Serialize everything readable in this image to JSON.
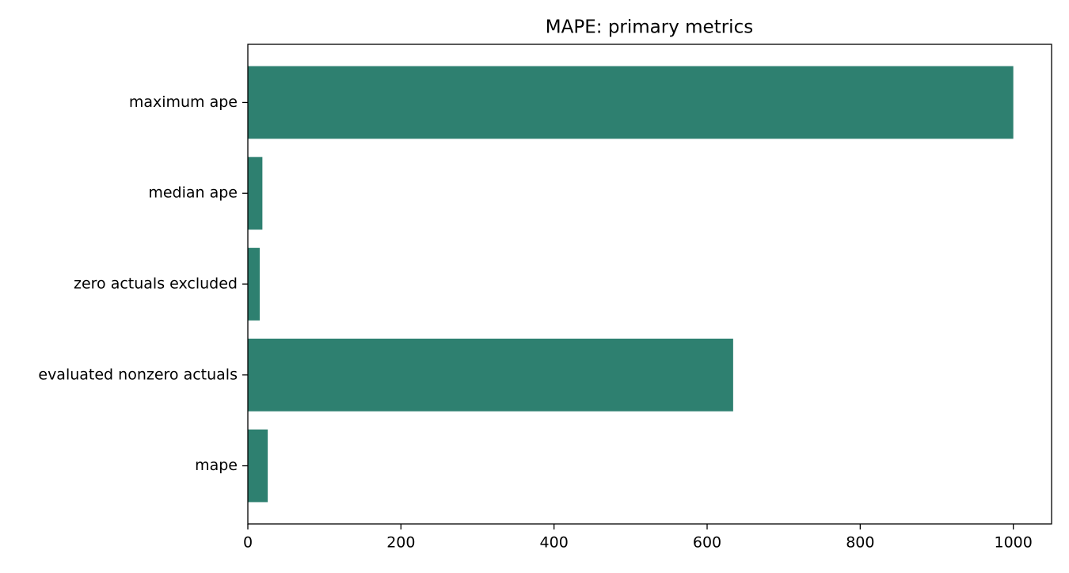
{
  "chart_data": {
    "type": "barh",
    "title": "MAPE: primary metrics",
    "categories": [
      "mape",
      "evaluated nonzero actuals",
      "zero actuals excluded",
      "median ape",
      "maximum ape"
    ],
    "values": [
      26,
      634,
      15.5,
      19,
      1000
    ],
    "color": "#2e8070",
    "xlim": [
      0,
      1050
    ],
    "xticks": [
      0,
      200,
      400,
      600,
      800,
      1000
    ],
    "grid": false
  }
}
